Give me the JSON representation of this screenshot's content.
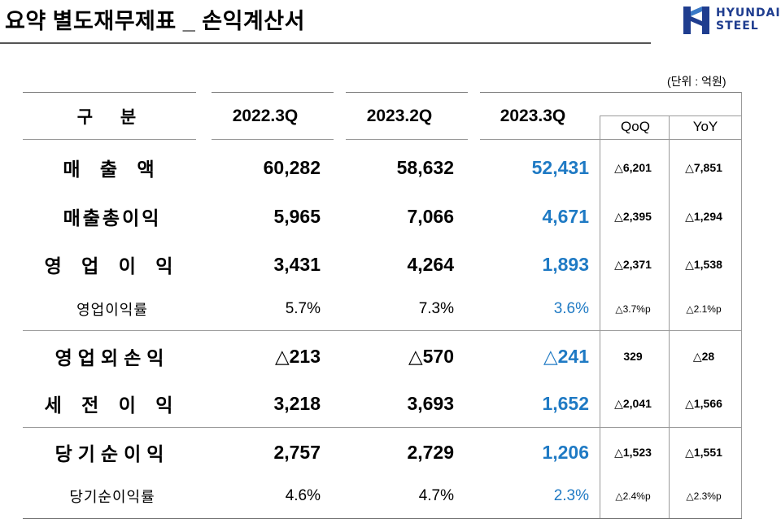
{
  "title": "요약 별도재무제표 _ 손익계산서",
  "logo": {
    "line1": "HYUNDAI",
    "line2": "STEEL"
  },
  "unit": "(단위 : 억원)",
  "headers": {
    "item": "구 분",
    "c1": "2022.3Q",
    "c2": "2023.2Q",
    "c3": "2023.3Q",
    "qoq": "QoQ",
    "yoy": "YoY"
  },
  "rows": [
    {
      "label": "매 출 액",
      "c1": "60,282",
      "c2": "58,632",
      "c3": "52,431",
      "qoq": "△6,201",
      "yoy": "△7,851"
    },
    {
      "label": "매출총이익",
      "c1": "5,965",
      "c2": "7,066",
      "c3": "4,671",
      "qoq": "△2,395",
      "yoy": "△1,294"
    },
    {
      "label": "영 업 이 익",
      "c1": "3,431",
      "c2": "4,264",
      "c3": "1,893",
      "qoq": "△2,371",
      "yoy": "△1,538"
    },
    {
      "label": "영업이익률",
      "c1": "5.7%",
      "c2": "7.3%",
      "c3": "3.6%",
      "qoq": "△3.7%p",
      "yoy": "△2.1%p"
    },
    {
      "label": "영업외손익",
      "c1": "△213",
      "c2": "△570",
      "c3": "△241",
      "qoq": "329",
      "yoy": "△28"
    },
    {
      "label": "세 전 이 익",
      "c1": "3,218",
      "c2": "3,693",
      "c3": "1,652",
      "qoq": "△2,041",
      "yoy": "△1,566"
    },
    {
      "label": "당기순이익",
      "c1": "2,757",
      "c2": "2,729",
      "c3": "1,206",
      "qoq": "△1,523",
      "yoy": "△1,551"
    },
    {
      "label": "당기순이익률",
      "c1": "4.6%",
      "c2": "4.7%",
      "c3": "2.3%",
      "qoq": "△2.4%p",
      "yoy": "△2.3%p"
    }
  ]
}
